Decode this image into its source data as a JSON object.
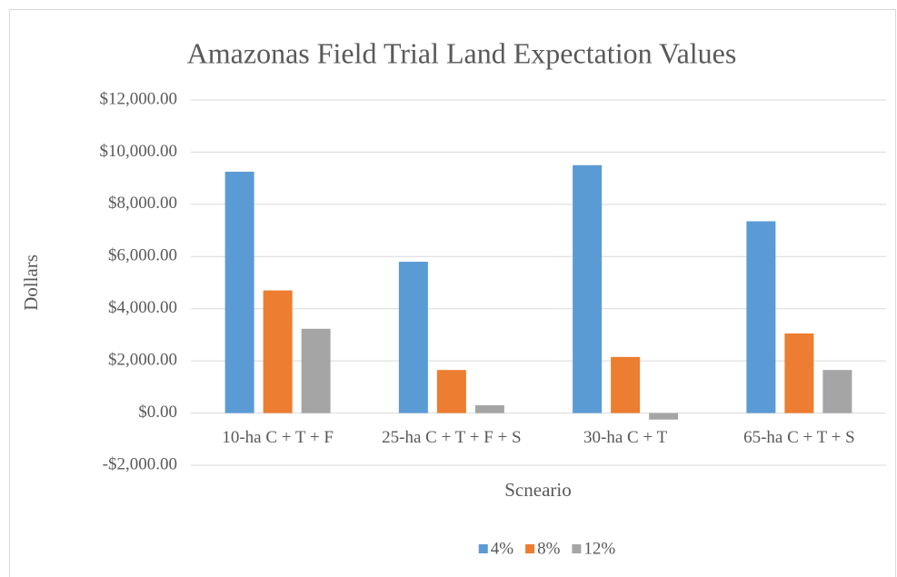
{
  "chart_data": {
    "type": "bar",
    "title": "Amazonas Field Trial Land Expectation Values",
    "ylabel": "Dollars",
    "xlabel": "Scneario",
    "categories": [
      "10-ha C + T + F",
      "25-ha C + T + F + S",
      "30-ha C + T",
      "65-ha C + T + S"
    ],
    "series": [
      {
        "name": "4%",
        "color": "#5b9bd5",
        "values": [
          9250,
          5800,
          9500,
          7350
        ]
      },
      {
        "name": "8%",
        "color": "#ed7d31",
        "values": [
          4700,
          1650,
          2150,
          3050
        ]
      },
      {
        "name": "12%",
        "color": "#a5a5a5",
        "values": [
          3230,
          300,
          -250,
          1650
        ]
      }
    ],
    "ylim": [
      -2000,
      12000
    ],
    "yticks": [
      {
        "value": -2000,
        "label": "-$2,000.00"
      },
      {
        "value": 0,
        "label": "$0.00"
      },
      {
        "value": 2000,
        "label": "$2,000.00"
      },
      {
        "value": 4000,
        "label": "$4,000.00"
      },
      {
        "value": 6000,
        "label": "$6,000.00"
      },
      {
        "value": 8000,
        "label": "$8,000.00"
      },
      {
        "value": 10000,
        "label": "$10,000.00"
      },
      {
        "value": 12000,
        "label": "$12,000.00"
      }
    ],
    "grid": true,
    "legend": "bottom"
  }
}
